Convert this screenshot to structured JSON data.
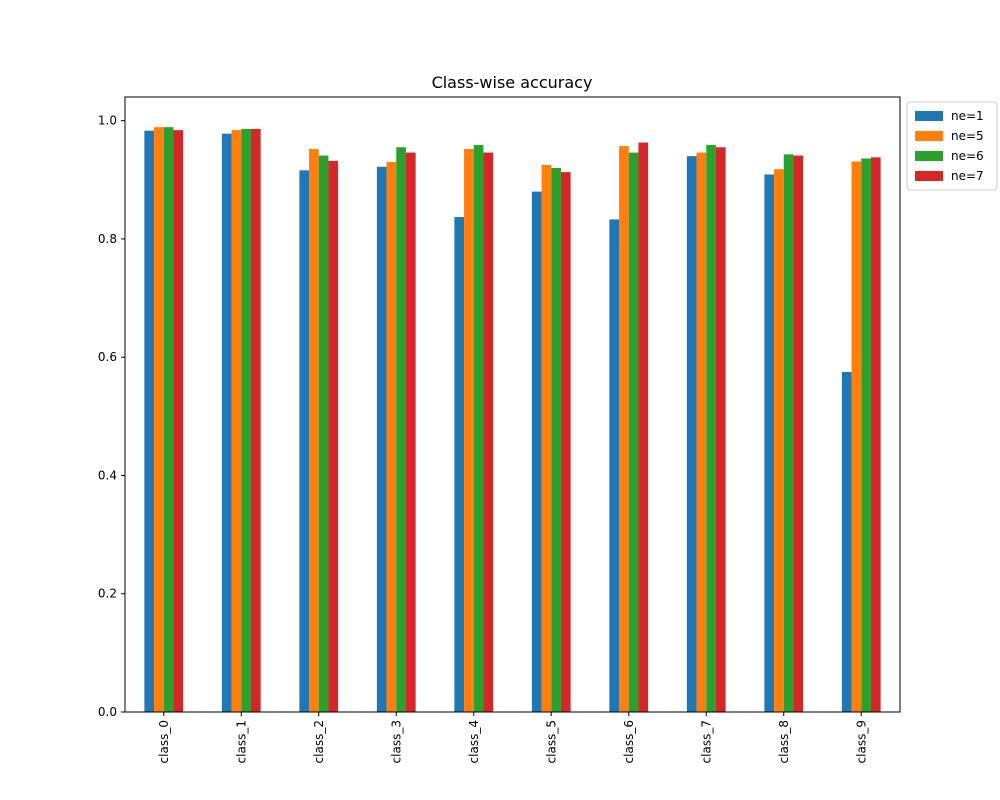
{
  "chart_data": {
    "type": "bar",
    "title": "Class-wise accuracy",
    "xlabel": "",
    "ylabel": "",
    "categories": [
      "class_0",
      "class_1",
      "class_2",
      "class_3",
      "class_4",
      "class_5",
      "class_6",
      "class_7",
      "class_8",
      "class_9"
    ],
    "series": [
      {
        "name": "ne=1",
        "color": "#1f77b4",
        "values": [
          0.983,
          0.978,
          0.916,
          0.922,
          0.837,
          0.88,
          0.833,
          0.94,
          0.909,
          0.575
        ]
      },
      {
        "name": "ne=5",
        "color": "#ff7f0e",
        "values": [
          0.989,
          0.984,
          0.952,
          0.93,
          0.952,
          0.925,
          0.957,
          0.946,
          0.918,
          0.931
        ]
      },
      {
        "name": "ne=6",
        "color": "#2ca02c",
        "values": [
          0.989,
          0.986,
          0.941,
          0.955,
          0.959,
          0.92,
          0.946,
          0.959,
          0.943,
          0.936
        ]
      },
      {
        "name": "ne=7",
        "color": "#d62728",
        "values": [
          0.984,
          0.986,
          0.932,
          0.946,
          0.946,
          0.913,
          0.963,
          0.955,
          0.941,
          0.938
        ]
      }
    ],
    "ylim": [
      0,
      1.04
    ],
    "yticks": [
      "0.0",
      "0.2",
      "0.4",
      "0.6",
      "0.8",
      "1.0"
    ],
    "legend_position": "outside-top-right",
    "grid": false
  }
}
